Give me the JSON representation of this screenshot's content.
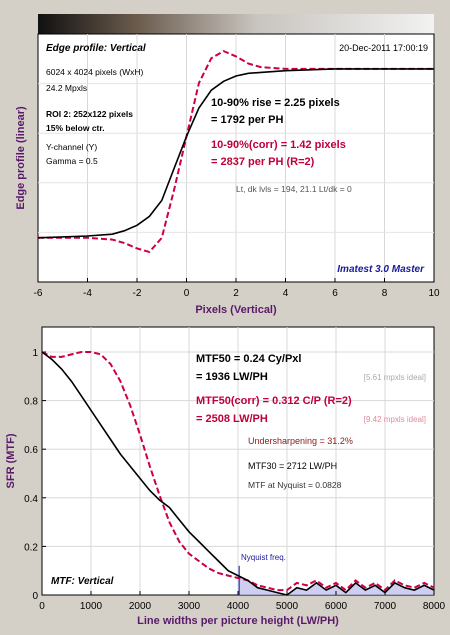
{
  "chart_data": [
    {
      "type": "line",
      "title": "Edge profile: Vertical",
      "timestamp": "20-Dec-2011 17:00:19",
      "xlabel": "Pixels (Vertical)",
      "ylabel": "Edge profile (linear)",
      "xlim": [
        -6,
        10
      ],
      "xticks": [
        "-6",
        "-4",
        "-2",
        "0",
        "2",
        "4",
        "6",
        "8",
        "10"
      ],
      "info": [
        "6024 x 4024 pixels (WxH)",
        "24.2 Mpxls",
        "ROI 2:  252x122 pixels",
        "15% below ctr.",
        "Y-channel  (Y)",
        "Gamma = 0.5"
      ],
      "rise_lines": [
        "10-90% rise = 2.25 pixels",
        "= 1792 per PH"
      ],
      "corr_lines": [
        "10-90%(corr) = 1.42 pixels",
        "= 2837 per PH  (R=2)"
      ],
      "levels": "Lt, dk lvls = 194, 21.1   Lt/dk = 0",
      "brand": "Imatest 3.0 Master",
      "series": [
        {
          "color": "#000000",
          "style": "solid",
          "x": [
            -6,
            -4,
            -3,
            -2.5,
            -2,
            -1.5,
            -1,
            -0.5,
            0,
            0.5,
            1,
            1.5,
            2,
            2.5,
            3,
            4,
            5,
            6,
            8,
            10
          ],
          "y": [
            0.05,
            0.06,
            0.07,
            0.09,
            0.12,
            0.17,
            0.26,
            0.44,
            0.62,
            0.78,
            0.88,
            0.93,
            0.96,
            0.975,
            0.98,
            0.99,
            0.995,
            1.0,
            1.0,
            1.0
          ]
        },
        {
          "color": "#cc0044",
          "style": "dashed",
          "x": [
            -6,
            -4,
            -3,
            -2.5,
            -2,
            -1.5,
            -1,
            -0.5,
            0,
            0.5,
            1,
            1.5,
            2,
            2.5,
            3,
            4,
            5,
            6,
            8,
            10
          ],
          "y": [
            0.05,
            0.05,
            0.04,
            0.02,
            -0.01,
            -0.03,
            0.05,
            0.32,
            0.62,
            0.92,
            1.06,
            1.1,
            1.07,
            1.03,
            1.01,
            1.0,
            1.0,
            1.0,
            1.0,
            1.0
          ]
        }
      ]
    },
    {
      "type": "line",
      "title": "MTF: Vertical",
      "xlabel": "Line widths per picture height (LW/PH)",
      "ylabel": "SFR (MTF)",
      "xlim": [
        0,
        8000
      ],
      "ylim": [
        0,
        1
      ],
      "xticks": [
        "0",
        "1000",
        "2000",
        "3000",
        "4000",
        "5000",
        "6000",
        "7000",
        "8000"
      ],
      "yticks": [
        "0",
        "0.2",
        "0.4",
        "0.6",
        "0.8",
        "1"
      ],
      "mtf50": [
        "MTF50 = 0.24 Cy/Pxl",
        "= 1936 LW/PH"
      ],
      "ideal1": "[5.61 mpxls ideal]",
      "mtf50corr": [
        "MTF50(corr) = 0.312 C/P  (R=2)",
        "= 2508 LW/PH"
      ],
      "ideal2": "[9.42 mpxls ideal]",
      "undersharpening": "Undersharpening = 31.2%",
      "mtf30": "MTF30 = 2712 LW/PH",
      "nyq_text": "MTF at Nyquist = 0.0828",
      "nyquist_label": "Nyquist freq.",
      "nyquist": 4024,
      "series": [
        {
          "color": "#000000",
          "style": "solid",
          "x": [
            0,
            200,
            400,
            600,
            800,
            1000,
            1200,
            1400,
            1600,
            1800,
            2000,
            2200,
            2400,
            2600,
            2800,
            3000,
            3200,
            3400,
            3600,
            3800,
            4000,
            4200,
            4400,
            4600,
            4800,
            5000,
            5200,
            5400,
            5600,
            5800,
            6000,
            6200,
            6400,
            6600,
            6800,
            7000,
            7200,
            7400,
            7600,
            7800,
            8000
          ],
          "y": [
            1.0,
            0.97,
            0.93,
            0.88,
            0.82,
            0.76,
            0.7,
            0.64,
            0.58,
            0.53,
            0.48,
            0.43,
            0.39,
            0.36,
            0.31,
            0.26,
            0.22,
            0.18,
            0.14,
            0.1,
            0.08,
            0.06,
            0.03,
            0.02,
            0.01,
            0.0,
            0.03,
            0.02,
            0.05,
            0.02,
            0.04,
            0.01,
            0.05,
            0.02,
            0.04,
            0.01,
            0.05,
            0.03,
            0.02,
            0.04,
            0.02
          ]
        },
        {
          "color": "#cc0044",
          "style": "dashed",
          "x": [
            0,
            200,
            400,
            600,
            800,
            1000,
            1200,
            1400,
            1600,
            1800,
            2000,
            2200,
            2400,
            2600,
            2800,
            3000,
            3200,
            3400,
            3600,
            3800,
            4000,
            4200,
            4400,
            4600,
            4800,
            5000,
            5200,
            5400,
            5600,
            5800,
            6000,
            6200,
            6400,
            6600,
            6800,
            7000,
            7200,
            7400,
            7600,
            7800,
            8000
          ],
          "y": [
            1.0,
            0.98,
            0.98,
            0.99,
            1.0,
            1.0,
            0.99,
            0.95,
            0.88,
            0.78,
            0.66,
            0.53,
            0.41,
            0.3,
            0.22,
            0.17,
            0.14,
            0.11,
            0.09,
            0.08,
            0.07,
            0.06,
            0.04,
            0.03,
            0.02,
            0.02,
            0.05,
            0.04,
            0.06,
            0.03,
            0.05,
            0.02,
            0.06,
            0.03,
            0.05,
            0.02,
            0.06,
            0.04,
            0.03,
            0.05,
            0.03
          ]
        }
      ]
    }
  ]
}
